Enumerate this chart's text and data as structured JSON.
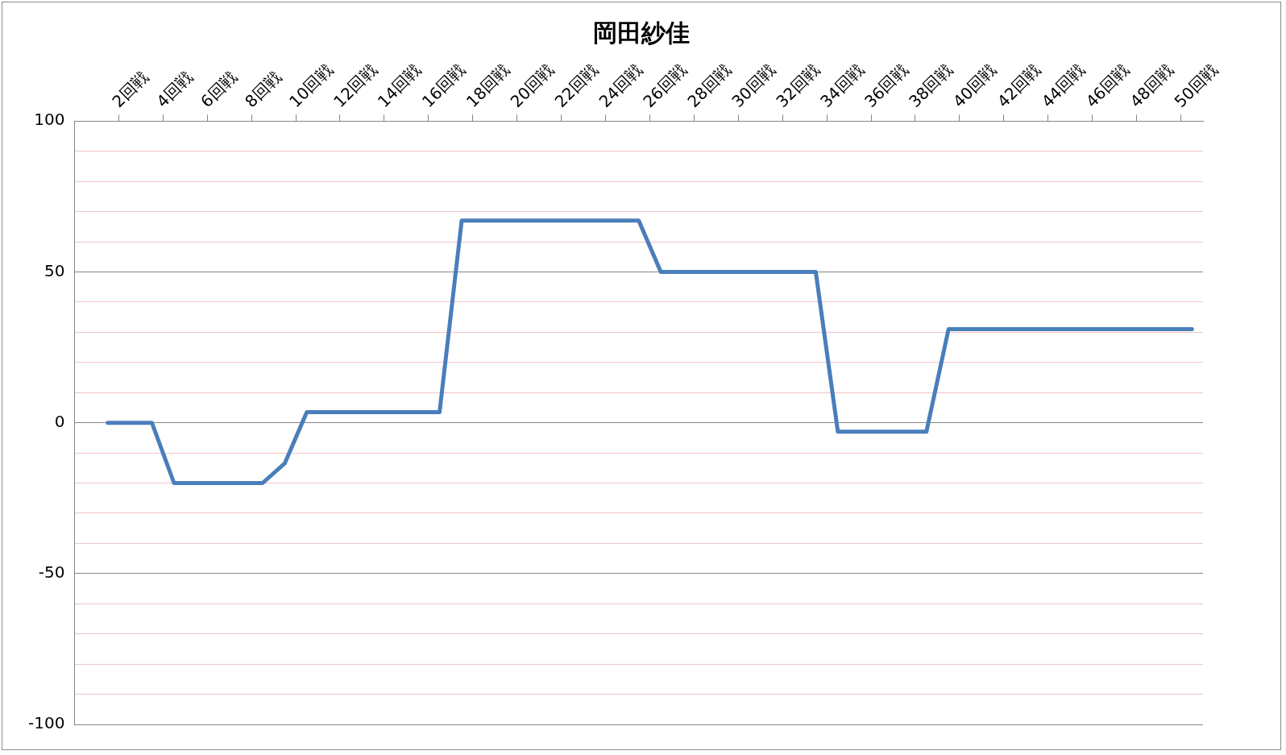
{
  "chart_data": {
    "type": "line",
    "title": "岡田紗佳",
    "categories": [
      null,
      null,
      "2回戦",
      null,
      "4回戦",
      null,
      "6回戦",
      null,
      "8回戦",
      null,
      "10回戦",
      null,
      "12回戦",
      null,
      "14回戦",
      null,
      "16回戦",
      null,
      "18回戦",
      null,
      "20回戦",
      null,
      "22回戦",
      null,
      "24回戦",
      null,
      "26回戦",
      null,
      "28回戦",
      null,
      "30回戦",
      null,
      "32回戦",
      null,
      "34回戦",
      null,
      "36回戦",
      null,
      "38回戦",
      null,
      "40回戦",
      null,
      "42回戦",
      null,
      "44回戦",
      null,
      "46回戦",
      null,
      "48回戦",
      null,
      "50回戦"
    ],
    "series": [
      {
        "color": "#4a7ebb",
        "values": [
          null,
          0,
          0,
          0,
          -20,
          -20,
          -20,
          -20,
          -20,
          -13.5,
          3.5,
          3.5,
          3.5,
          3.5,
          3.5,
          3.5,
          3.5,
          67,
          67,
          67,
          67,
          67,
          67,
          67,
          67,
          67,
          50,
          50,
          50,
          50,
          50,
          50,
          50,
          50,
          -3,
          -3,
          -3,
          -3,
          -3,
          31,
          31,
          31,
          31,
          31,
          31,
          31,
          31,
          31,
          31,
          31,
          31
        ]
      }
    ],
    "ylim": [
      -100,
      100
    ],
    "yticks": [
      -100,
      {
        "value": -90,
        "label": null
      },
      {
        "value": -80,
        "label": null
      },
      {
        "value": -70,
        "label": null
      },
      {
        "value": -60,
        "label": null
      },
      -50,
      {
        "value": -40,
        "label": null
      },
      {
        "value": -30,
        "label": null
      },
      {
        "value": -20,
        "label": null
      },
      {
        "value": -10,
        "label": null
      },
      0,
      {
        "value": 10,
        "label": null
      },
      {
        "value": 20,
        "label": null
      },
      {
        "value": 30,
        "label": null
      },
      {
        "value": 40,
        "label": null
      },
      50,
      {
        "value": 60,
        "label": null
      },
      {
        "value": 70,
        "label": null
      },
      {
        "value": 80,
        "label": null
      },
      {
        "value": 90,
        "label": null
      },
      100
    ],
    "grid": "y",
    "marker": "none",
    "line_style": "solid"
  }
}
